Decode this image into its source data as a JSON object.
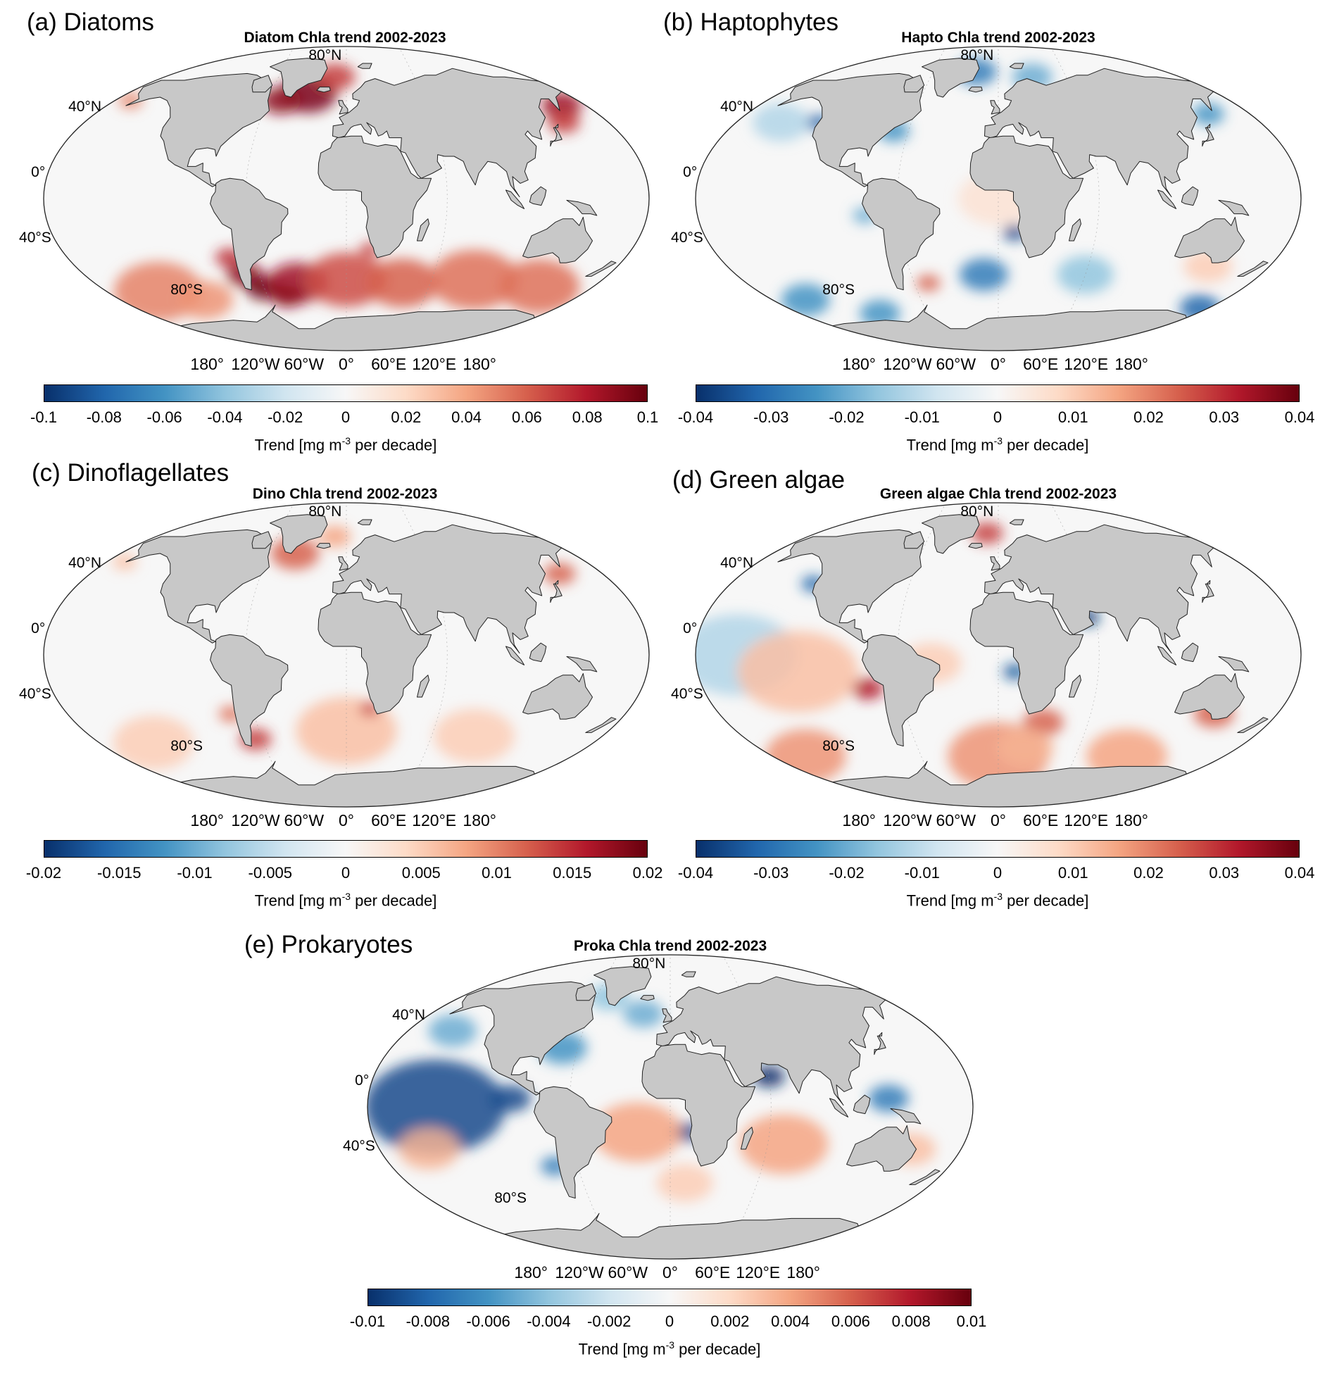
{
  "colorbar_label": {
    "prefix": "Trend [mg m",
    "exponent": "-3",
    "suffix": " per decade]"
  },
  "lat_labels": [
    "80°N",
    "40°N",
    "0°",
    "40°S",
    "80°S"
  ],
  "lon_labels": [
    "180°",
    "120°W",
    "60°W",
    "0°",
    "60°E",
    "120°E",
    "180°"
  ],
  "colors": {
    "land": "#c8c8c8",
    "ocean_neutral": "#f7f7f7",
    "blue_max": "#08306b",
    "red_max": "#67000d"
  },
  "panels": [
    {
      "label": "(a) Diatoms",
      "title": "Diatom Chla trend 2002-2023",
      "cbar_ticks": [
        "-0.1",
        "-0.08",
        "-0.06",
        "-0.04",
        "-0.02",
        "0",
        "0.02",
        "0.04",
        "0.06",
        "0.08",
        "0.1"
      ],
      "cbar_range": [
        -0.1,
        0.1
      ]
    },
    {
      "label": "(b) Haptophytes",
      "title": "Hapto Chla trend 2002-2023",
      "cbar_ticks": [
        "-0.04",
        "-0.03",
        "-0.02",
        "-0.01",
        "0",
        "0.01",
        "0.02",
        "0.03",
        "0.04"
      ],
      "cbar_range": [
        -0.04,
        0.04
      ]
    },
    {
      "label": "(c) Dinoflagellates",
      "title": "Dino Chla trend 2002-2023",
      "cbar_ticks": [
        "-0.02",
        "-0.015",
        "-0.01",
        "-0.005",
        "0",
        "0.005",
        "0.01",
        "0.015",
        "0.02"
      ],
      "cbar_range": [
        -0.02,
        0.02
      ]
    },
    {
      "label": "(d) Green algae",
      "title": "Green algae Chla trend 2002-2023",
      "cbar_ticks": [
        "-0.04",
        "-0.03",
        "-0.02",
        "-0.01",
        "0",
        "0.01",
        "0.02",
        "0.03",
        "0.04"
      ],
      "cbar_range": [
        -0.04,
        0.04
      ]
    },
    {
      "label": "(e) Prokaryotes",
      "title": "Proka Chla trend 2002-2023",
      "cbar_ticks": [
        "-0.01",
        "-0.008",
        "-0.006",
        "-0.004",
        "-0.002",
        "0",
        "0.002",
        "0.004",
        "0.006",
        "0.008",
        "0.01"
      ],
      "cbar_range": [
        -0.01,
        0.01
      ]
    }
  ]
}
